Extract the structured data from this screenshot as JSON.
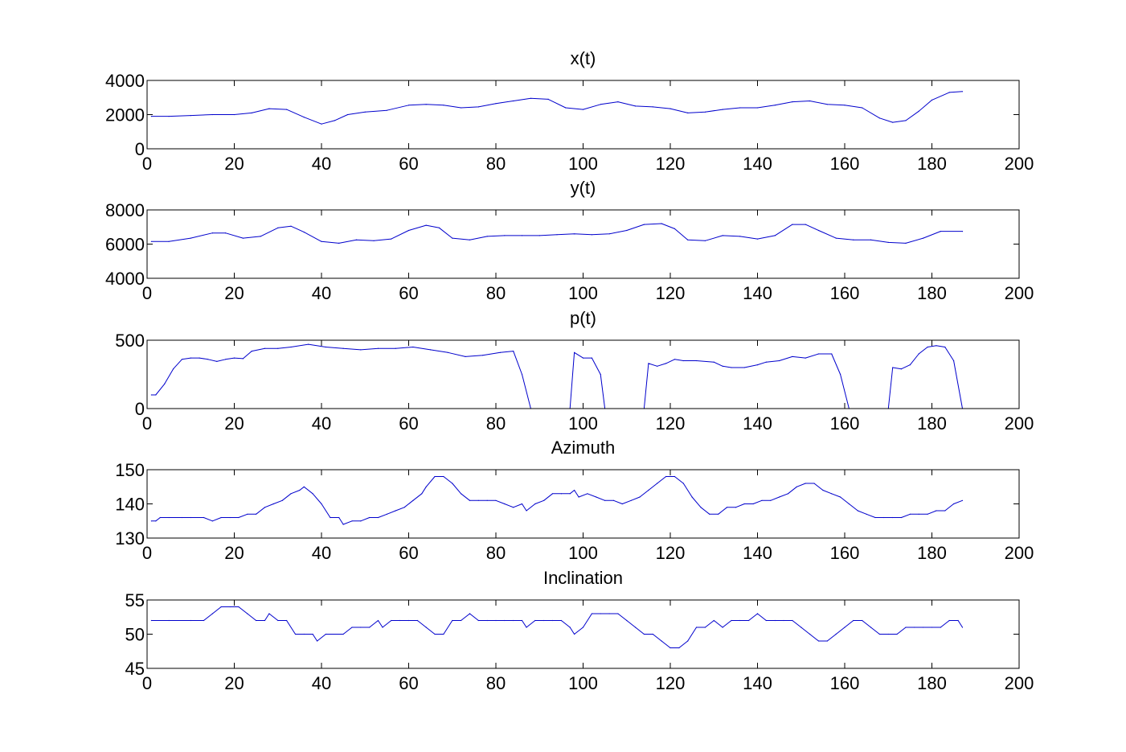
{
  "chart_data": [
    {
      "type": "line",
      "title": "x(t)",
      "xlim": [
        0,
        200
      ],
      "ylim": [
        0,
        4000
      ],
      "xticks": [
        0,
        20,
        40,
        60,
        80,
        100,
        120,
        140,
        160,
        180,
        200
      ],
      "yticks": [
        0,
        2000,
        4000
      ],
      "line_color": "#0000cc",
      "x": [
        1,
        5,
        10,
        15,
        20,
        24,
        28,
        32,
        36,
        40,
        43,
        46,
        50,
        55,
        60,
        64,
        68,
        72,
        76,
        80,
        84,
        88,
        92,
        96,
        100,
        104,
        108,
        112,
        116,
        120,
        124,
        128,
        132,
        136,
        140,
        144,
        148,
        152,
        156,
        160,
        164,
        168,
        171,
        174,
        177,
        180,
        184,
        187
      ],
      "y": [
        1900,
        1900,
        1950,
        2000,
        2000,
        2100,
        2350,
        2300,
        1850,
        1450,
        1650,
        2000,
        2150,
        2250,
        2550,
        2600,
        2550,
        2400,
        2450,
        2650,
        2800,
        2950,
        2900,
        2400,
        2300,
        2600,
        2750,
        2500,
        2450,
        2350,
        2100,
        2150,
        2300,
        2400,
        2400,
        2550,
        2750,
        2800,
        2600,
        2550,
        2400,
        1800,
        1550,
        1650,
        2200,
        2850,
        3300,
        3350
      ]
    },
    {
      "type": "line",
      "title": "y(t)",
      "xlim": [
        0,
        200
      ],
      "ylim": [
        4000,
        8000
      ],
      "xticks": [
        0,
        20,
        40,
        60,
        80,
        100,
        120,
        140,
        160,
        180,
        200
      ],
      "yticks": [
        4000,
        6000,
        8000
      ],
      "line_color": "#0000cc",
      "x": [
        1,
        5,
        10,
        15,
        18,
        22,
        26,
        30,
        33,
        36,
        40,
        44,
        48,
        52,
        56,
        60,
        64,
        67,
        70,
        74,
        78,
        82,
        86,
        90,
        94,
        98,
        102,
        106,
        110,
        114,
        118,
        121,
        124,
        128,
        132,
        136,
        140,
        144,
        148,
        151,
        154,
        158,
        162,
        166,
        170,
        174,
        178,
        182,
        187
      ],
      "y": [
        6150,
        6150,
        6350,
        6650,
        6650,
        6350,
        6450,
        6950,
        7050,
        6700,
        6150,
        6050,
        6250,
        6200,
        6300,
        6800,
        7100,
        6950,
        6350,
        6250,
        6450,
        6500,
        6500,
        6500,
        6550,
        6600,
        6550,
        6600,
        6800,
        7150,
        7200,
        6900,
        6250,
        6200,
        6500,
        6450,
        6300,
        6500,
        7150,
        7150,
        6800,
        6350,
        6250,
        6250,
        6100,
        6050,
        6350,
        6750,
        6750
      ]
    },
    {
      "type": "line",
      "title": "p(t)",
      "xlim": [
        0,
        200
      ],
      "ylim": [
        0,
        500
      ],
      "xticks": [
        0,
        20,
        40,
        60,
        80,
        100,
        120,
        140,
        160,
        180,
        200
      ],
      "yticks": [
        0,
        500
      ],
      "line_color": "#0000cc",
      "x": [
        1,
        2,
        4,
        6,
        8,
        10,
        12,
        14,
        16,
        18,
        20,
        22,
        24,
        27,
        30,
        33,
        37,
        41,
        45,
        49,
        53,
        57,
        61,
        65,
        69,
        73,
        77,
        81,
        84,
        86,
        88,
        97,
        98,
        100,
        102,
        104,
        105,
        114,
        115,
        117,
        119,
        121,
        123,
        126,
        130,
        132,
        134,
        137,
        140,
        142,
        145,
        148,
        151,
        154,
        157,
        159,
        161,
        170,
        171,
        173,
        175,
        177,
        179,
        181,
        183,
        185,
        187
      ],
      "y": [
        100,
        100,
        180,
        290,
        360,
        370,
        370,
        360,
        345,
        360,
        370,
        365,
        420,
        440,
        440,
        450,
        470,
        450,
        440,
        430,
        440,
        440,
        450,
        430,
        410,
        380,
        390,
        410,
        420,
        250,
        0,
        0,
        410,
        370,
        370,
        250,
        0,
        0,
        330,
        310,
        330,
        360,
        350,
        350,
        340,
        310,
        300,
        300,
        320,
        340,
        350,
        380,
        370,
        400,
        400,
        250,
        0,
        0,
        300,
        290,
        320,
        400,
        450,
        460,
        450,
        350,
        0
      ]
    },
    {
      "type": "line",
      "title": "Azimuth",
      "xlim": [
        0,
        200
      ],
      "ylim": [
        130,
        150
      ],
      "xticks": [
        0,
        20,
        40,
        60,
        80,
        100,
        120,
        140,
        160,
        180,
        200
      ],
      "yticks": [
        130,
        140,
        150
      ],
      "line_color": "#0000cc",
      "x": [
        1,
        2,
        3,
        5,
        8,
        10,
        13,
        15,
        17,
        19,
        21,
        23,
        25,
        27,
        29,
        31,
        33,
        35,
        36,
        38,
        40,
        42,
        44,
        45,
        47,
        49,
        51,
        53,
        55,
        57,
        59,
        61,
        63,
        64,
        66,
        68,
        70,
        72,
        74,
        76,
        78,
        80,
        82,
        84,
        86,
        87,
        89,
        91,
        93,
        95,
        97,
        98,
        99,
        101,
        103,
        105,
        107,
        109,
        111,
        113,
        115,
        117,
        119,
        121,
        123,
        125,
        127,
        129,
        131,
        133,
        135,
        137,
        139,
        141,
        143,
        145,
        147,
        149,
        151,
        153,
        155,
        157,
        159,
        161,
        163,
        165,
        167,
        169,
        171,
        173,
        175,
        177,
        179,
        181,
        183,
        185,
        187
      ],
      "y": [
        135,
        135,
        136,
        136,
        136,
        136,
        136,
        135,
        136,
        136,
        136,
        137,
        137,
        139,
        140,
        141,
        143,
        144,
        145,
        143,
        140,
        136,
        136,
        134,
        135,
        135,
        136,
        136,
        137,
        138,
        139,
        141,
        143,
        145,
        148,
        148,
        146,
        143,
        141,
        141,
        141,
        141,
        140,
        139,
        140,
        138,
        140,
        141,
        143,
        143,
        143,
        144,
        142,
        143,
        142,
        141,
        141,
        140,
        141,
        142,
        144,
        146,
        148,
        148,
        146,
        142,
        139,
        137,
        137,
        139,
        139,
        140,
        140,
        141,
        141,
        142,
        143,
        145,
        146,
        146,
        144,
        143,
        142,
        140,
        138,
        137,
        136,
        136,
        136,
        136,
        137,
        137,
        137,
        138,
        138,
        140,
        141
      ]
    },
    {
      "type": "line",
      "title": "Inclination",
      "xlim": [
        0,
        200
      ],
      "ylim": [
        45,
        55
      ],
      "xticks": [
        0,
        20,
        40,
        60,
        80,
        100,
        120,
        140,
        160,
        180,
        200
      ],
      "yticks": [
        45,
        50,
        55
      ],
      "line_color": "#0000cc",
      "x": [
        1,
        5,
        10,
        13,
        15,
        17,
        19,
        21,
        23,
        25,
        27,
        28,
        30,
        32,
        34,
        36,
        38,
        39,
        41,
        45,
        47,
        49,
        51,
        53,
        54,
        56,
        58,
        60,
        62,
        64,
        66,
        68,
        70,
        72,
        74,
        76,
        78,
        80,
        82,
        84,
        86,
        87,
        89,
        91,
        93,
        95,
        97,
        98,
        100,
        102,
        104,
        106,
        108,
        110,
        112,
        114,
        116,
        118,
        120,
        122,
        124,
        126,
        128,
        130,
        132,
        134,
        136,
        138,
        140,
        142,
        144,
        146,
        148,
        150,
        152,
        154,
        156,
        158,
        160,
        162,
        164,
        166,
        168,
        170,
        172,
        174,
        176,
        178,
        180,
        182,
        184,
        186,
        187
      ],
      "y": [
        52,
        52,
        52,
        52,
        53,
        54,
        54,
        54,
        53,
        52,
        52,
        53,
        52,
        52,
        50,
        50,
        50,
        49,
        50,
        50,
        51,
        51,
        51,
        52,
        51,
        52,
        52,
        52,
        52,
        51,
        50,
        50,
        52,
        52,
        53,
        52,
        52,
        52,
        52,
        52,
        52,
        51,
        52,
        52,
        52,
        52,
        51,
        50,
        51,
        53,
        53,
        53,
        53,
        52,
        51,
        50,
        50,
        49,
        48,
        48,
        49,
        51,
        51,
        52,
        51,
        52,
        52,
        52,
        53,
        52,
        52,
        52,
        52,
        51,
        50,
        49,
        49,
        50,
        51,
        52,
        52,
        51,
        50,
        50,
        50,
        51,
        51,
        51,
        51,
        51,
        52,
        52,
        51
      ]
    }
  ]
}
